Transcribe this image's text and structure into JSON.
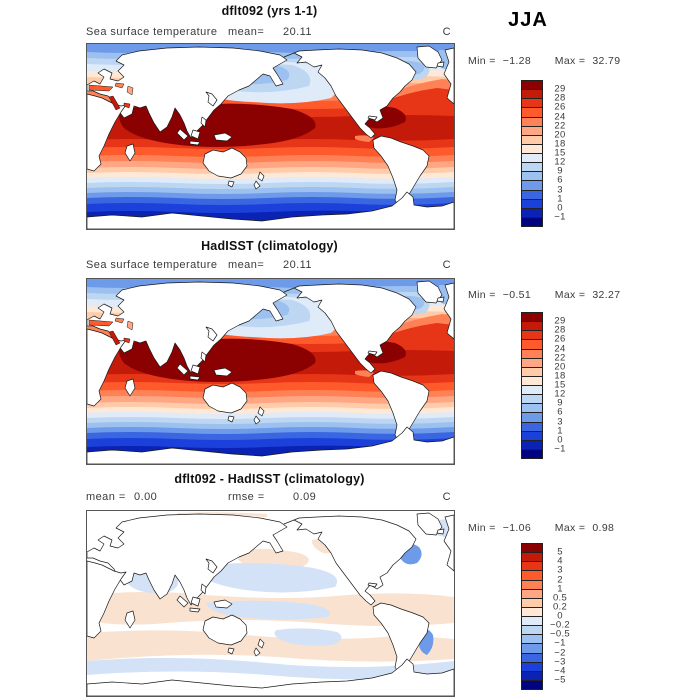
{
  "season_label": "JJA",
  "palette": [
    "#8B0000",
    "#C41A0A",
    "#E63517",
    "#FF5A2B",
    "#FF8257",
    "#FFA785",
    "#FFCBA8",
    "#FFE8D5",
    "#DFEBF9",
    "#BDD7F3",
    "#9CC0EF",
    "#6E9AEA",
    "#3A66E2",
    "#1C41DB",
    "#0A23B5",
    "#000480"
  ],
  "panels": [
    {
      "title": "dflt092 (yrs 1-1)",
      "subtitle": "Sea surface temperature",
      "stats": [
        {
          "label": "mean=",
          "value": "20.11"
        }
      ],
      "unit": "C",
      "colorbar": {
        "min_label": "Min =",
        "min": "−1.28",
        "max_label": "Max =",
        "max": "32.79",
        "ticks": [
          "29",
          "28",
          "26",
          "24",
          "22",
          "20",
          "18",
          "15",
          "12",
          "9",
          "6",
          "3",
          "1",
          "0",
          "−1"
        ]
      }
    },
    {
      "title": "HadISST (climatology)",
      "subtitle": "Sea surface temperature",
      "stats": [
        {
          "label": "mean=",
          "value": "20.11"
        }
      ],
      "unit": "C",
      "colorbar": {
        "min_label": "Min =",
        "min": "−0.51",
        "max_label": "Max =",
        "max": "32.27",
        "ticks": [
          "29",
          "28",
          "26",
          "24",
          "22",
          "20",
          "18",
          "15",
          "12",
          "9",
          "6",
          "3",
          "1",
          "0",
          "−1"
        ]
      }
    },
    {
      "title": "dflt092 - HadISST (climatology)",
      "stats": [
        {
          "label": "mean =",
          "value": "0.00"
        },
        {
          "label": "rmse =",
          "value": "0.09"
        }
      ],
      "unit": "C",
      "colorbar": {
        "min_label": "Min =",
        "min": "−1.06",
        "max_label": "Max =",
        "max": "0.98",
        "ticks": [
          "5",
          "4",
          "3",
          "2",
          "1",
          "0.5",
          "0.2",
          "0",
          "−0.2",
          "−0.5",
          "−1",
          "−2",
          "−3",
          "−4",
          "−5"
        ]
      }
    }
  ],
  "chart_data": [
    {
      "type": "heatmap",
      "subtype": "global-filled-contour-map",
      "projection": "cylindrical equidistant, Pacific-centered",
      "title": "dflt092 (yrs 1-1)",
      "season": "JJA",
      "variable": "Sea surface temperature",
      "units": "C",
      "mean": 20.11,
      "min": -1.28,
      "max": 32.79,
      "contour_levels": [
        -1,
        0,
        1,
        3,
        6,
        9,
        12,
        15,
        18,
        20,
        22,
        24,
        26,
        28,
        29
      ],
      "palette_low_to_high": [
        "#000480",
        "#0A23B5",
        "#1C41DB",
        "#3A66E2",
        "#6E9AEA",
        "#9CC0EF",
        "#BDD7F3",
        "#DFEBF9",
        "#FFE8D5",
        "#FFCBA8",
        "#FFA785",
        "#FF8257",
        "#FF5A2B",
        "#E63517",
        "#C41A0A",
        "#8B0000"
      ],
      "legend_position": "right",
      "pattern_notes": "warmest water (>29C) in tropical Indian Ocean / west Pacific warm pool and Caribbean; cold (<0C) circumpolar Southern Ocean band and Arctic; cool tongue in subarctic North Pacific and NW Atlantic"
    },
    {
      "type": "heatmap",
      "subtype": "global-filled-contour-map",
      "projection": "cylindrical equidistant, Pacific-centered",
      "title": "HadISST (climatology)",
      "season": "JJA",
      "variable": "Sea surface temperature",
      "units": "C",
      "mean": 20.11,
      "min": -0.51,
      "max": 32.27,
      "contour_levels": [
        -1,
        0,
        1,
        3,
        6,
        9,
        12,
        15,
        18,
        20,
        22,
        24,
        26,
        28,
        29
      ],
      "palette_low_to_high": [
        "#000480",
        "#0A23B5",
        "#1C41DB",
        "#3A66E2",
        "#6E9AEA",
        "#9CC0EF",
        "#BDD7F3",
        "#DFEBF9",
        "#FFE8D5",
        "#FFCBA8",
        "#FFA785",
        "#FF8257",
        "#FF5A2B",
        "#E63517",
        "#C41A0A",
        "#8B0000"
      ],
      "legend_position": "right",
      "pattern_notes": "observed SST climatology, nearly identical zonal structure to model panel"
    },
    {
      "type": "heatmap",
      "subtype": "global-filled-contour-map (difference)",
      "projection": "cylindrical equidistant, Pacific-centered",
      "title": "dflt092 - HadISST (climatology)",
      "season": "JJA",
      "variable": "SST difference (model minus observations)",
      "units": "C",
      "mean": 0.0,
      "rmse": 0.09,
      "min": -1.06,
      "max": 0.98,
      "contour_levels": [
        -5,
        -4,
        -3,
        -2,
        -1,
        -0.5,
        -0.2,
        0,
        0.2,
        0.5,
        1,
        2,
        3,
        4,
        5
      ],
      "legend_position": "right",
      "pattern_notes": "differences mostly within ±0.5C: faint warm (peach) patches in tropics/subtropics, faint cool (blue) patches in central North Pacific, equator and Southern Ocean; strongest cool anomalies along NW Atlantic Gulf Stream and SW Atlantic"
    }
  ]
}
